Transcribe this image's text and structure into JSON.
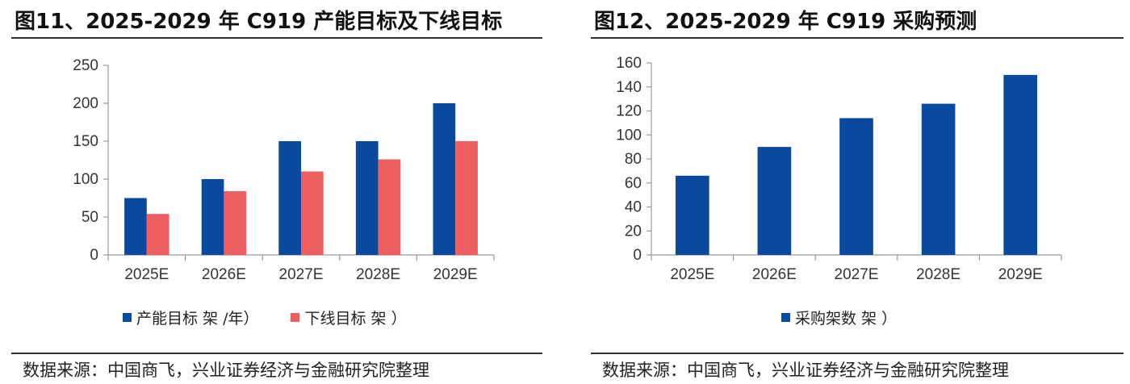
{
  "colors": {
    "blue": "#0a4a9e",
    "red": "#ee5e61",
    "axis": "#9a9a9a"
  },
  "left": {
    "title": "图11、2025-2029 年 C919 产能目标及下线目标",
    "source": "数据来源：中国商飞，兴业证券经济与金融研究院整理",
    "legend": [
      {
        "label": "产能目标 架  /年）",
        "color_key": "blue"
      },
      {
        "label": "下线目标 架 ）",
        "color_key": "red"
      }
    ]
  },
  "right": {
    "title": "图12、2025-2029 年 C919 采购预测",
    "source": "数据来源：中国商飞，兴业证券经济与金融研究院整理",
    "legend": [
      {
        "label": "采购架数 架 ）",
        "color_key": "blue"
      }
    ]
  },
  "chart_data": [
    {
      "type": "bar",
      "title": "2025-2029 年 C919 产能目标及下线目标",
      "categories": [
        "2025E",
        "2026E",
        "2027E",
        "2028E",
        "2029E"
      ],
      "series": [
        {
          "name": "产能目标 架  /年）",
          "values": [
            75,
            100,
            150,
            150,
            200
          ]
        },
        {
          "name": "下线目标 架 ）",
          "values": [
            54,
            84,
            110,
            126,
            150
          ]
        }
      ],
      "ylim": [
        0,
        250
      ],
      "yticks": [
        "0",
        "50",
        "100",
        "150",
        "200",
        "250"
      ],
      "legend_position": "bottom",
      "grid": false
    },
    {
      "type": "bar",
      "title": "2025-2029 年 C919 采购预测",
      "categories": [
        "2025E",
        "2026E",
        "2027E",
        "2028E",
        "2029E"
      ],
      "series": [
        {
          "name": "采购架数 架 ）",
          "values": [
            66,
            90,
            114,
            126,
            150
          ]
        }
      ],
      "ylim": [
        0,
        160
      ],
      "yticks": [
        "0",
        "20",
        "40",
        "60",
        "80",
        "100",
        "120",
        "140",
        "160"
      ],
      "legend_position": "bottom",
      "grid": false
    }
  ]
}
